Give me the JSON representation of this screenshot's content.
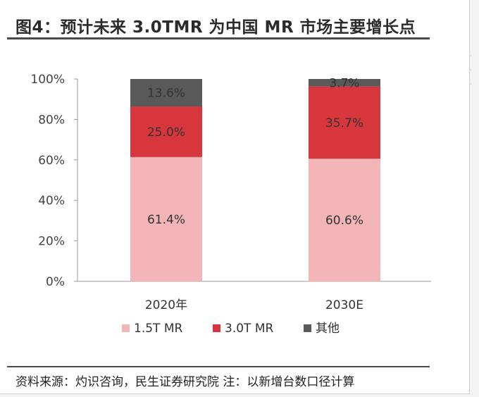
{
  "title": "图4：预计未来 3.0TMR 为中国 MR 市场主要增长点",
  "source": "资料来源：灼识咨询，民生证券研究院 注：以新增台数口径计算",
  "chart_data": {
    "type": "bar",
    "stacked": true,
    "title": "图4：预计未来 3.0TMR 为中国 MR 市场主要增长点",
    "xlabel": "",
    "ylabel": "",
    "categories": [
      "2020年",
      "2030E"
    ],
    "y_ticks": [
      "0%",
      "20%",
      "40%",
      "60%",
      "80%",
      "100%"
    ],
    "ylim": [
      0,
      100
    ],
    "grid": false,
    "legend_position": "bottom",
    "series": [
      {
        "name": "1.5T MR",
        "values": [
          61.4,
          60.6
        ],
        "labels": [
          "61.4%",
          "60.6%"
        ],
        "color": "#f4b5b8"
      },
      {
        "name": "3.0T MR",
        "values": [
          25.0,
          35.7
        ],
        "labels": [
          "25.0%",
          "35.7%"
        ],
        "color": "#d7373c"
      },
      {
        "name": "其他",
        "values": [
          13.6,
          3.7
        ],
        "labels": [
          "13.6%",
          "3.7%"
        ],
        "color": "#595959"
      }
    ]
  }
}
